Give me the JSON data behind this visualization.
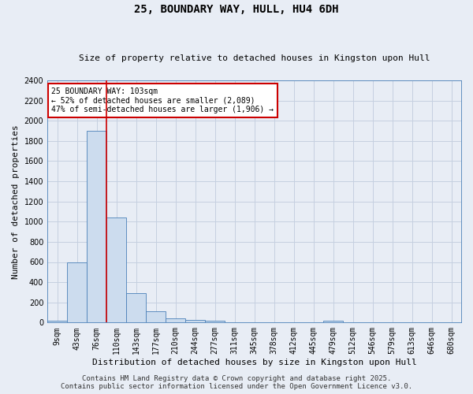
{
  "title": "25, BOUNDARY WAY, HULL, HU4 6DH",
  "subtitle": "Size of property relative to detached houses in Kingston upon Hull",
  "xlabel": "Distribution of detached houses by size in Kingston upon Hull",
  "ylabel": "Number of detached properties",
  "bin_labels": [
    "9sqm",
    "43sqm",
    "76sqm",
    "110sqm",
    "143sqm",
    "177sqm",
    "210sqm",
    "244sqm",
    "277sqm",
    "311sqm",
    "345sqm",
    "378sqm",
    "412sqm",
    "445sqm",
    "479sqm",
    "512sqm",
    "546sqm",
    "579sqm",
    "613sqm",
    "646sqm",
    "680sqm"
  ],
  "bar_values": [
    20,
    600,
    1900,
    1040,
    290,
    110,
    45,
    25,
    20,
    0,
    0,
    0,
    0,
    0,
    20,
    0,
    0,
    0,
    0,
    0,
    0
  ],
  "bar_color": "#ccdcee",
  "bar_edge_color": "#4a80b8",
  "grid_color": "#c5d0e0",
  "background_color": "#e8edf5",
  "vline_color": "#cc0000",
  "vline_pos": 2.5,
  "annotation_text": "25 BOUNDARY WAY: 103sqm\n← 52% of detached houses are smaller (2,089)\n47% of semi-detached houses are larger (1,906) →",
  "annotation_box_facecolor": "#ffffff",
  "annotation_box_edgecolor": "#cc0000",
  "ylim": [
    0,
    2400
  ],
  "yticks": [
    0,
    200,
    400,
    600,
    800,
    1000,
    1200,
    1400,
    1600,
    1800,
    2000,
    2200,
    2400
  ],
  "footer_text": "Contains HM Land Registry data © Crown copyright and database right 2025.\nContains public sector information licensed under the Open Government Licence v3.0.",
  "title_fontsize": 10,
  "subtitle_fontsize": 8,
  "tick_fontsize": 7,
  "ylabel_fontsize": 8,
  "xlabel_fontsize": 8,
  "annotation_fontsize": 7,
  "footer_fontsize": 6.5
}
